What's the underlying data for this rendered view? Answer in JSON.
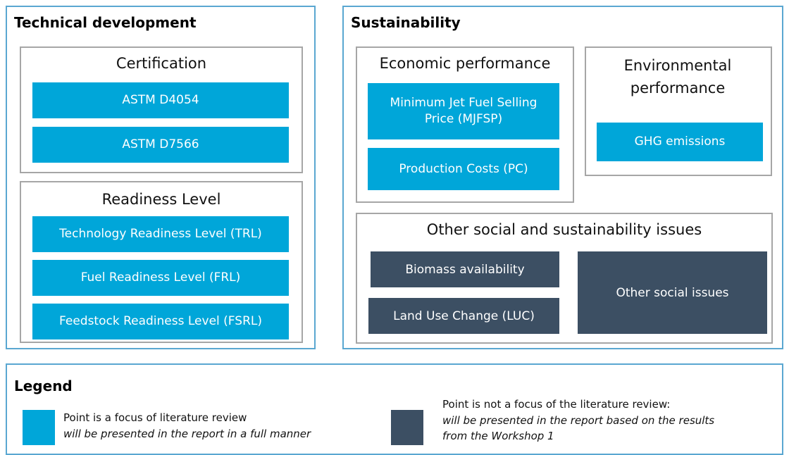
{
  "technical": {
    "title": "Technical development",
    "certification": {
      "title": "Certification",
      "items": [
        "ASTM D4054",
        "ASTM D7566"
      ]
    },
    "readiness": {
      "title": "Readiness Level",
      "items": [
        "Technology Readiness Level (TRL)",
        "Fuel Readiness Level (FRL)",
        "Feedstock Readiness Level (FSRL)"
      ]
    }
  },
  "sustainability": {
    "title": "Sustainability",
    "economic": {
      "title": "Economic performance",
      "items": [
        "Minimum Jet Fuel Selling Price (MJFSP)",
        "Production Costs (PC)"
      ]
    },
    "environmental": {
      "title": "Environmental performance",
      "items": [
        "GHG emissions"
      ]
    },
    "other": {
      "title": "Other social and sustainability issues",
      "items": [
        "Biomass availability",
        "Land Use Change (LUC)",
        "Other social issues"
      ]
    }
  },
  "legend": {
    "title": "Legend",
    "items": [
      {
        "line1": "Point is a focus of literature review",
        "line2": "will be presented in the report in a full manner"
      },
      {
        "line1": "Point is not a focus of the literature review:",
        "line2": "will be presented in the report based on the results from the Workshop 1"
      }
    ]
  }
}
